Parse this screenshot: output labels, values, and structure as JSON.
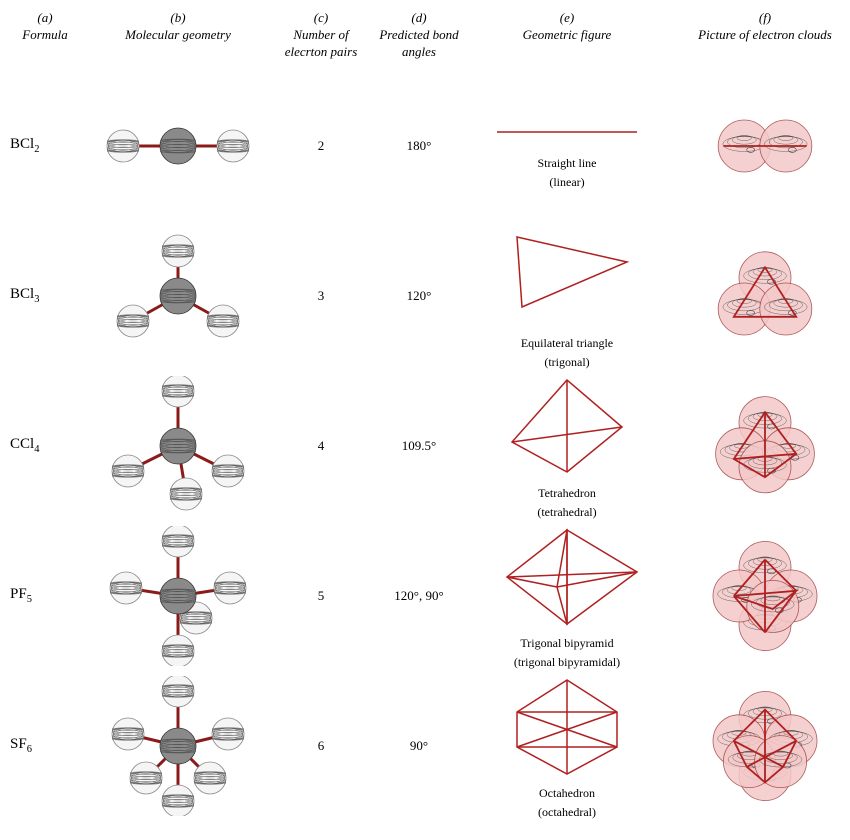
{
  "headers": {
    "a": {
      "letter": "(a)",
      "label": "Formula"
    },
    "b": {
      "letter": "(b)",
      "label": "Molecular geometry"
    },
    "c": {
      "letter": "(c)",
      "label": "Number of elecrton pairs"
    },
    "d": {
      "letter": "(d)",
      "label": "Predicted bond angles"
    },
    "e": {
      "letter": "(e)",
      "label": "Geometric figure"
    },
    "f": {
      "letter": "(f)",
      "label": "Picture of electron clouds"
    }
  },
  "colors": {
    "bond": "#8b1a1a",
    "geom_line": "#b02020",
    "central_atom_fill": "#8a8a8a",
    "central_atom_stroke": "#333333",
    "outer_atom_fill": "#f5f5f5",
    "outer_atom_stroke": "#888888",
    "atom_stripe": "#555555",
    "cloud_fill": "#f4c8c8",
    "cloud_stroke": "#a04040",
    "cloud_stripe": "#444444",
    "text": "#000000",
    "background": "#ffffff"
  },
  "rows": [
    {
      "formula_base": "BCl",
      "formula_sub": "2",
      "pairs": "2",
      "angle": "180°",
      "geom_name": "Straight line",
      "geom_paren": "(linear)",
      "geom_type": "line",
      "molecule": {
        "type": "linear"
      },
      "cloud_count": 2
    },
    {
      "formula_base": "BCl",
      "formula_sub": "3",
      "pairs": "3",
      "angle": "120°",
      "geom_name": "Equilateral triangle",
      "geom_paren": "(trigonal)",
      "geom_type": "triangle",
      "molecule": {
        "type": "trigonal"
      },
      "cloud_count": 3
    },
    {
      "formula_base": "CCl",
      "formula_sub": "4",
      "pairs": "4",
      "angle": "109.5°",
      "geom_name": "Tetrahedron",
      "geom_paren": "(tetrahedral)",
      "geom_type": "tetrahedron",
      "molecule": {
        "type": "tetrahedral"
      },
      "cloud_count": 4
    },
    {
      "formula_base": "PF",
      "formula_sub": "5",
      "pairs": "5",
      "angle": "120°, 90°",
      "geom_name": "Trigonal bipyramid",
      "geom_paren": "(trigonal bipyramidal)",
      "geom_type": "trigonal_bipyramid",
      "molecule": {
        "type": "trigonal_bipyramidal"
      },
      "cloud_count": 5
    },
    {
      "formula_base": "SF",
      "formula_sub": "6",
      "pairs": "6",
      "angle": "90°",
      "geom_name": "Octahedron",
      "geom_paren": "(octahedral)",
      "geom_type": "octahedron",
      "molecule": {
        "type": "octahedral"
      },
      "cloud_count": 6
    }
  ],
  "style": {
    "atom_radius_outer": 16,
    "atom_radius_center": 18,
    "bond_width": 3,
    "geom_stroke_width": 1.5,
    "cloud_radius": 26,
    "header_fontsize": 13,
    "body_fontsize": 13,
    "formula_fontsize": 15,
    "geom_label_fontsize": 12
  }
}
